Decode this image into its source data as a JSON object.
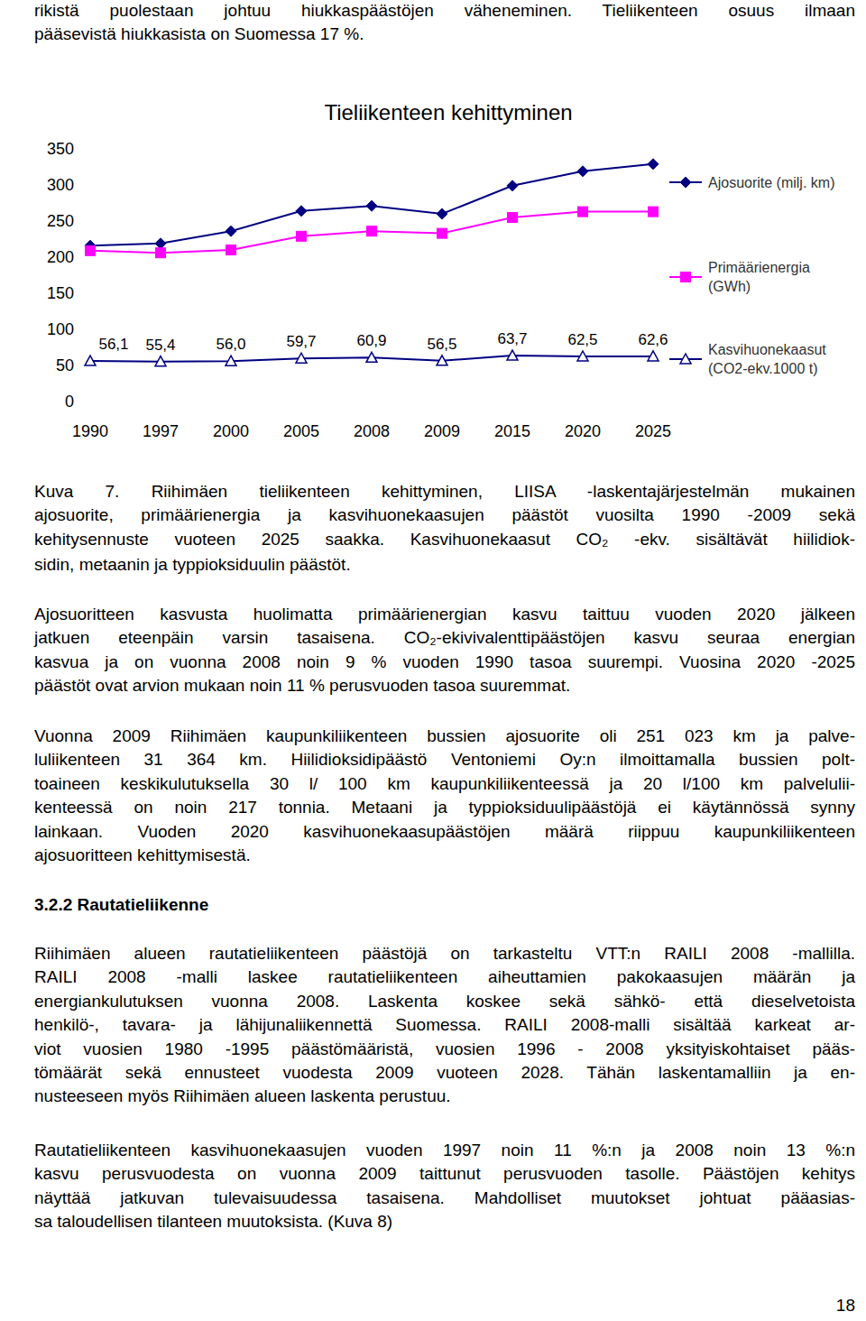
{
  "document": {
    "intro": [
      "rikistä puolestaan johtuu hiukkaspäästöjen väheneminen. Tieliikenteen osuus ilmaan",
      "pääsevistä hiukkasista on Suomessa 17 %."
    ],
    "caption": [
      "Kuva 7. Riihimäen tieliikenteen kehittyminen, LIISA -laskentajärjestelmän mukainen",
      "ajosuorite, primäärienergia ja kasvihuonekaasujen päästöt vuosilta 1990 -2009 sekä",
      "kehitysennuste vuoteen 2025 saakka. Kasvihuonekaasut CO₂ -ekv. sisältävät hiilidiok-",
      "sidin, metaanin ja typpioksiduulin päästöt."
    ],
    "paragraphs": [
      [
        "Ajosuoritteen kasvusta huolimatta primäärienergian kasvu taittuu vuoden 2020 jälkeen",
        "jatkuen eteenpäin varsin tasaisena. CO₂-ekivivalenttipäästöjen kasvu seuraa energian",
        "kasvua ja on vuonna 2008 noin 9 % vuoden 1990 tasoa suurempi. Vuosina 2020 -2025",
        "päästöt ovat arvion mukaan noin 11 % perusvuoden tasoa suuremmat."
      ],
      [
        "Vuonna 2009 Riihimäen kaupunkiliikenteen bussien ajosuorite oli 251 023 km ja palve-",
        "luliikenteen 31 364 km. Hiilidioksidipäästö Ventoniemi Oy:n ilmoittamalla bussien polt-",
        "toaineen keskikulutuksella 30 l/ 100 km kaupunkiliikenteessä ja 20 l/100 km palvelulii-",
        "kenteessä on noin 217 tonnia. Metaani ja typpioksiduulipäästöjä ei käytännössä synny",
        "lainkaan. Vuoden 2020 kasvihuonekaasupäästöjen määrä riippuu kaupunkiliikenteen",
        "ajosuoritteen kehittymisestä."
      ],
      [
        "Riihimäen alueen rautatieliikenteen päästöjä on tarkasteltu VTT:n RAILI 2008 -mallilla.",
        "RAILI 2008 -malli laskee rautatieliikenteen aiheuttamien pakokaasujen määrän ja",
        "energiankulutuksen vuonna 2008. Laskenta koskee sekä sähkö- että dieselvetoista",
        "henkilö-, tavara- ja lähijunaliikennettä Suomessa. RAILI 2008-malli sisältää karkeat ar-",
        "viot vuosien 1980 -1995 päästömääristä, vuosien 1996 - 2008 yksityiskohtaiset pääs-",
        "tömäärät sekä ennusteet vuodesta 2009 vuoteen 2028. Tähän laskentamalliin ja en-",
        "nusteeseen myös Riihimäen alueen laskenta perustuu."
      ],
      [
        "Rautatieliikenteen kasvihuonekaasujen vuoden 1997 noin 11 %:n ja 2008 noin 13 %:n",
        "kasvu perusvuodesta on vuonna 2009 taittunut perusvuoden tasolle. Päästöjen kehitys",
        "näyttää jatkuvan tulevaisuudessa tasaisena. Mahdolliset muutokset johtuat pääasias-",
        "sa taloudellisen tilanteen muutoksista. (Kuva 8)"
      ]
    ],
    "heading": "3.2.2 Rautatieliikenne",
    "page_number": "18"
  },
  "chart_data": {
    "type": "line",
    "title": "Tieliikenteen kehittyminen",
    "categories": [
      "1990",
      "1997",
      "2000",
      "2005",
      "2008",
      "2009",
      "2015",
      "2020",
      "2025"
    ],
    "series": [
      {
        "name": "Ajosuorite (milj. km)",
        "color": "#000080",
        "marker": "diamond",
        "line_style": "solid",
        "values": [
          216,
          219,
          236,
          264,
          271,
          260,
          299,
          319,
          329
        ]
      },
      {
        "name": "Primäärienergia (GWh)",
        "color": "#ff00ff",
        "marker": "square",
        "line_style": "solid",
        "values": [
          209,
          206,
          210,
          229,
          236,
          233,
          255,
          263,
          263
        ]
      },
      {
        "name": "Kasvihuonekaasut (CO2-ekv.1000 t)",
        "color": "#000080",
        "marker": "triangle",
        "line_style": "solid",
        "values": [
          56.1,
          55.4,
          56.0,
          59.7,
          60.9,
          56.5,
          63.7,
          62.5,
          62.6
        ],
        "value_labels": [
          "56,1",
          "55,4",
          "56,0",
          "59,7",
          "60,9",
          "56,5",
          "63,7",
          "62,5",
          "62,6"
        ]
      }
    ],
    "ylim": [
      0,
      350
    ],
    "yticks": [
      0,
      50,
      100,
      150,
      200,
      250,
      300,
      350
    ],
    "grid": false,
    "legend": "right",
    "data_labels": true
  }
}
